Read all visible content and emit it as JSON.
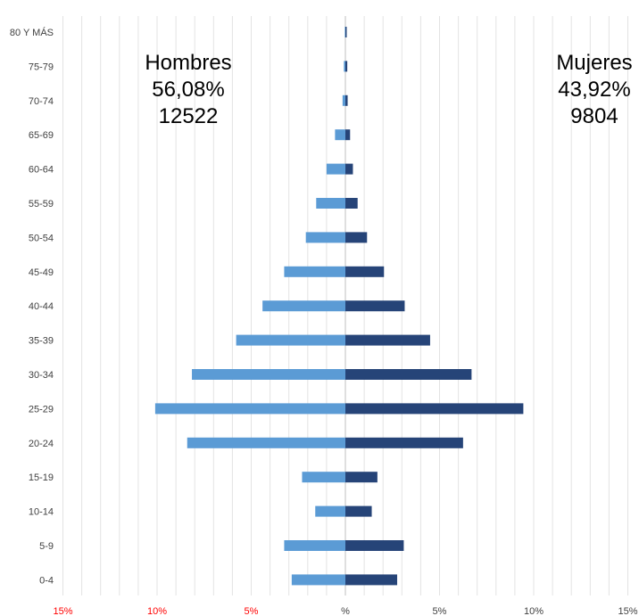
{
  "chart_data": {
    "type": "bar",
    "orientation": "horizontal-population-pyramid",
    "categories": [
      "0-4",
      "5-9",
      "10-14",
      "15-19",
      "20-24",
      "25-29",
      "30-34",
      "35-39",
      "40-44",
      "45-49",
      "50-54",
      "55-59",
      "60-64",
      "65-69",
      "70-74",
      "75-79",
      "80 Y MÁS"
    ],
    "series": [
      {
        "name": "Hombres",
        "color": "#5b9bd5",
        "values": [
          2.85,
          3.25,
          1.6,
          2.3,
          8.4,
          10.1,
          8.15,
          5.8,
          4.4,
          3.25,
          2.1,
          1.55,
          1.0,
          0.55,
          0.15,
          0.08,
          0.03
        ]
      },
      {
        "name": "Mujeres",
        "color": "#264478",
        "values": [
          2.75,
          3.1,
          1.4,
          1.7,
          6.25,
          9.45,
          6.7,
          4.5,
          3.15,
          2.05,
          1.15,
          0.65,
          0.4,
          0.25,
          0.12,
          0.1,
          0.05
        ]
      }
    ],
    "xlim": [
      -15,
      15
    ],
    "xticks": [
      {
        "value": -15,
        "label": "15%",
        "color": "#ff0000"
      },
      {
        "value": -10,
        "label": "10%",
        "color": "#ff0000"
      },
      {
        "value": -5,
        "label": "5%",
        "color": "#ff0000"
      },
      {
        "value": 0,
        "label": "%",
        "color": "#404040"
      },
      {
        "value": 5,
        "label": "5%",
        "color": "#404040"
      },
      {
        "value": 10,
        "label": "10%",
        "color": "#404040"
      },
      {
        "value": 15,
        "label": "15%",
        "color": "#404040"
      }
    ],
    "grid": true,
    "annotations": {
      "left": [
        "Hombres",
        "56,08%",
        "12522"
      ],
      "right": [
        "Mujeres",
        "43,92%",
        "9804"
      ]
    }
  }
}
